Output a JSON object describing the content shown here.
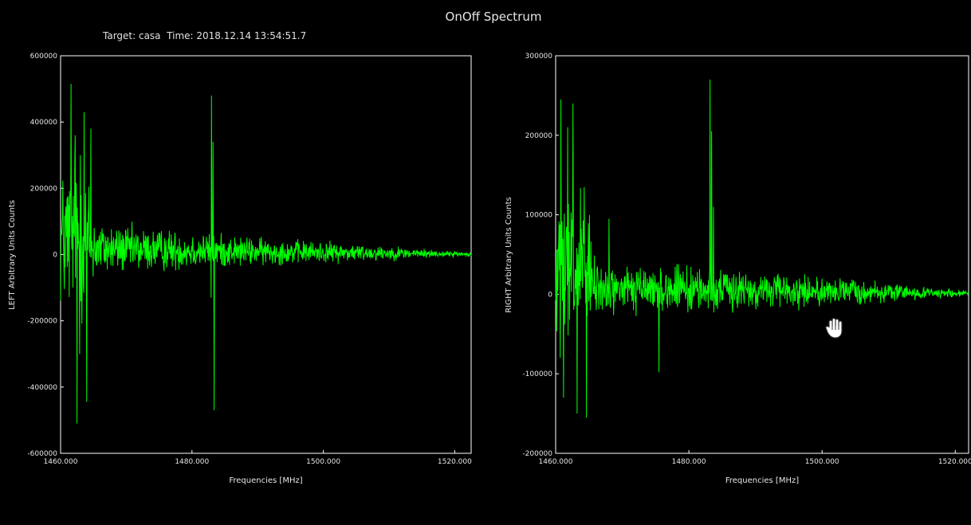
{
  "window": {
    "title": "OnOff Spectrum"
  },
  "header": {
    "target_time": "Target: casa  Time: 2018.12.14 13:54:51.7"
  },
  "colors": {
    "background": "#000000",
    "trace": "#00ff00",
    "frame": "#ffffff",
    "text": "#e6e6e6"
  },
  "cursor_icon": "hand-grab-icon",
  "chart_data": [
    {
      "type": "line",
      "name": "left",
      "xlabel": "Frequencies [MHz]",
      "ylabel": "LEFT  Arbitrary Units Counts",
      "xlim": [
        1460.0,
        1522.5
      ],
      "ylim": [
        -600000,
        600000
      ],
      "xticks": [
        1460.0,
        1480.0,
        1500.0,
        1520.0
      ],
      "xtick_labels": [
        "1460.000",
        "1480.000",
        "1500.000",
        "1520.000"
      ],
      "yticks": [
        600000,
        400000,
        200000,
        0,
        -200000,
        -400000,
        -600000
      ],
      "ytick_labels": [
        "600000",
        "400000",
        "200000",
        "0",
        "-200000",
        "-400000",
        "-600000"
      ],
      "noise_envelope": [
        {
          "x": 1460.0,
          "amp": 300000
        },
        {
          "x": 1461.0,
          "amp": 330000
        },
        {
          "x": 1463.0,
          "amp": 360000
        },
        {
          "x": 1464.5,
          "amp": 260000
        },
        {
          "x": 1465.5,
          "amp": 120000
        },
        {
          "x": 1470.0,
          "amp": 100000
        },
        {
          "x": 1480.0,
          "amp": 80000
        },
        {
          "x": 1490.0,
          "amp": 58000
        },
        {
          "x": 1500.0,
          "amp": 45000
        },
        {
          "x": 1510.0,
          "amp": 30000
        },
        {
          "x": 1516.0,
          "amp": 18000
        },
        {
          "x": 1522.5,
          "amp": 8000
        }
      ],
      "spikes": [
        {
          "x": 1461.6,
          "y": 515000
        },
        {
          "x": 1462.2,
          "y": 360000
        },
        {
          "x": 1462.5,
          "y": -510000
        },
        {
          "x": 1463.0,
          "y": 300000
        },
        {
          "x": 1463.6,
          "y": 430000
        },
        {
          "x": 1464.0,
          "y": -445000
        },
        {
          "x": 1464.6,
          "y": 380000
        },
        {
          "x": 1462.9,
          "y": -300000
        },
        {
          "x": 1483.0,
          "y": 480000
        },
        {
          "x": 1483.2,
          "y": 340000
        },
        {
          "x": 1483.4,
          "y": -470000
        },
        {
          "x": 1482.9,
          "y": -130000
        }
      ]
    },
    {
      "type": "line",
      "name": "right",
      "xlabel": "Frequencies [MHz]",
      "ylabel": "RIGHT  Arbitrary Units Counts",
      "xlim": [
        1460.0,
        1522.0
      ],
      "ylim": [
        -200000,
        300000
      ],
      "xticks": [
        1460.0,
        1480.0,
        1500.0,
        1520.0
      ],
      "xtick_labels": [
        "1460.000",
        "1480.000",
        "1500.000",
        "1520.000"
      ],
      "yticks": [
        300000,
        200000,
        100000,
        0,
        -100000,
        -200000
      ],
      "ytick_labels": [
        "300000",
        "200000",
        "100000",
        "0",
        "-100000",
        "-200000"
      ],
      "noise_envelope": [
        {
          "x": 1460.0,
          "amp": 120000
        },
        {
          "x": 1462.0,
          "amp": 150000
        },
        {
          "x": 1464.0,
          "amp": 150000
        },
        {
          "x": 1465.0,
          "amp": 110000
        },
        {
          "x": 1466.0,
          "amp": 45000
        },
        {
          "x": 1475.0,
          "amp": 40000
        },
        {
          "x": 1485.0,
          "amp": 35000
        },
        {
          "x": 1495.0,
          "amp": 28000
        },
        {
          "x": 1505.0,
          "amp": 22000
        },
        {
          "x": 1512.0,
          "amp": 14000
        },
        {
          "x": 1522.0,
          "amp": 6000
        }
      ],
      "spikes": [
        {
          "x": 1460.8,
          "y": 245000
        },
        {
          "x": 1461.8,
          "y": 210000
        },
        {
          "x": 1462.6,
          "y": 240000
        },
        {
          "x": 1463.2,
          "y": -150000
        },
        {
          "x": 1464.3,
          "y": 135000
        },
        {
          "x": 1464.6,
          "y": -155000
        },
        {
          "x": 1461.2,
          "y": -130000
        },
        {
          "x": 1483.2,
          "y": 270000
        },
        {
          "x": 1483.4,
          "y": 205000
        },
        {
          "x": 1483.7,
          "y": 110000
        },
        {
          "x": 1468.0,
          "y": 95000
        },
        {
          "x": 1475.5,
          "y": -98000
        }
      ]
    }
  ]
}
